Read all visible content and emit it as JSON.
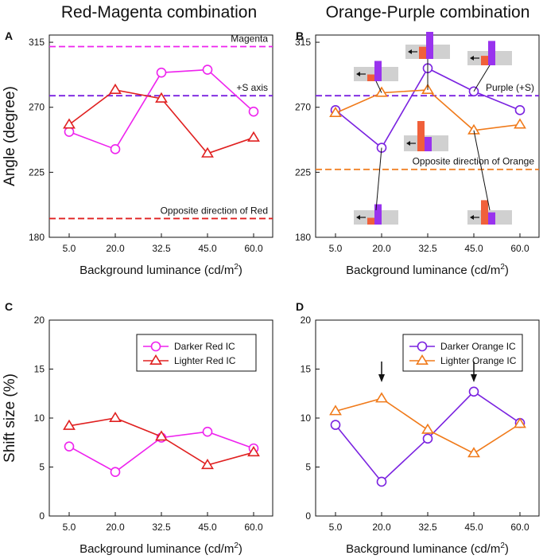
{
  "titles": {
    "left": "Red-Magenta combination",
    "right": "Orange-Purple combination"
  },
  "colors": {
    "magenta": "#ee22ee",
    "red": "#e02020",
    "purple": "#7a22e0",
    "orange": "#f07a1a",
    "gray": "#d0d0d0",
    "bar_orange": "#f0603a",
    "bar_purple": "#9933ee"
  },
  "chart_data": [
    {
      "panel": "A",
      "type": "line",
      "categories": [
        "5.0",
        "20.0",
        "32.5",
        "45.0",
        "60.0"
      ],
      "ylabel": "Angle (degree)",
      "xlabel": "Background luminance (cd/m",
      "xlabel_sup": "2",
      "xlabel_end": ")",
      "ylim": [
        180,
        320
      ],
      "yticks": [
        180,
        225,
        270,
        315
      ],
      "series": [
        {
          "name": "Darker Red IC",
          "color": "#ee22ee",
          "marker": "circle",
          "values": [
            253,
            241,
            294,
            296,
            267
          ]
        },
        {
          "name": "Lighter Red IC",
          "color": "#e02020",
          "marker": "triangle",
          "values": [
            258,
            282,
            276,
            238,
            249
          ]
        }
      ],
      "reference_lines": [
        {
          "label": "Magenta",
          "value": 312,
          "color": "#ee22ee",
          "label_pos": "right"
        },
        {
          "label": "+S axis",
          "value": 278,
          "color": "#7a22e0",
          "label_pos": "right"
        },
        {
          "label": "Opposite direction of Red",
          "value": 193,
          "color": "#e02020",
          "label_pos": "right"
        }
      ]
    },
    {
      "panel": "B",
      "type": "line",
      "categories": [
        "5.0",
        "20.0",
        "32.5",
        "45.0",
        "60.0"
      ],
      "ylabel": "",
      "xlabel": "Background luminance (cd/m",
      "xlabel_sup": "2",
      "xlabel_end": ")",
      "ylim": [
        180,
        320
      ],
      "yticks": [
        180,
        225,
        270,
        315
      ],
      "series": [
        {
          "name": "Darker Orange IC",
          "color": "#7a22e0",
          "marker": "circle",
          "values": [
            268,
            242,
            297,
            281,
            268
          ]
        },
        {
          "name": "Lighter Orange IC",
          "color": "#f07a1a",
          "marker": "triangle",
          "values": [
            266,
            280,
            282,
            254,
            258
          ]
        }
      ],
      "reference_lines": [
        {
          "label": "Purple (+S)",
          "value": 278,
          "color": "#7a22e0",
          "label_pos": "right"
        },
        {
          "label": "Opposite direction of Orange",
          "value": 227,
          "color": "#f07a1a",
          "label_pos": "right"
        }
      ]
    },
    {
      "panel": "C",
      "type": "line",
      "categories": [
        "5.0",
        "20.0",
        "32.5",
        "45.0",
        "60.0"
      ],
      "ylabel": "Shift size (%)",
      "xlabel": "Background luminance (cd/m",
      "xlabel_sup": "2",
      "xlabel_end": ")",
      "ylim": [
        0,
        20
      ],
      "yticks": [
        0,
        5,
        10,
        15,
        20
      ],
      "series": [
        {
          "name": "Darker Red IC",
          "color": "#ee22ee",
          "marker": "circle",
          "values": [
            7.1,
            4.5,
            8.0,
            8.6,
            6.9
          ]
        },
        {
          "name": "Lighter Red IC",
          "color": "#e02020",
          "marker": "triangle",
          "values": [
            9.2,
            10.0,
            8.1,
            5.2,
            6.5
          ]
        }
      ],
      "legend": "top-right"
    },
    {
      "panel": "D",
      "type": "line",
      "categories": [
        "5.0",
        "20.0",
        "32.5",
        "45.0",
        "60.0"
      ],
      "ylabel": "",
      "xlabel": "Background luminance (cd/m",
      "xlabel_sup": "2",
      "xlabel_end": ")",
      "ylim": [
        0,
        20
      ],
      "yticks": [
        0,
        5,
        10,
        15,
        20
      ],
      "series": [
        {
          "name": "Darker Orange IC",
          "color": "#7a22e0",
          "marker": "circle",
          "values": [
            9.3,
            3.5,
            7.9,
            12.7,
            9.5
          ]
        },
        {
          "name": "Lighter Orange IC",
          "color": "#f07a1a",
          "marker": "triangle",
          "values": [
            10.7,
            12.0,
            8.8,
            6.4,
            9.4
          ]
        }
      ],
      "legend": "top-right",
      "arrows_at_categories": [
        "20.0",
        "45.0"
      ]
    }
  ],
  "insets_panel_B": [
    {
      "category": "20.0",
      "anchor_value": 280,
      "bars": [
        0.25,
        0.75
      ]
    },
    {
      "category": "32.5",
      "anchor_value": 282,
      "bars": [
        0.45,
        1.0
      ]
    },
    {
      "category": "45.0",
      "anchor_value": 281,
      "bars": [
        0.35,
        0.9
      ]
    },
    {
      "category": "20.0",
      "anchor_value": 242,
      "bars": [
        0.25,
        0.75
      ]
    },
    {
      "category": "45.0",
      "anchor_value": 254,
      "bars": [
        0.9,
        0.45
      ]
    }
  ]
}
